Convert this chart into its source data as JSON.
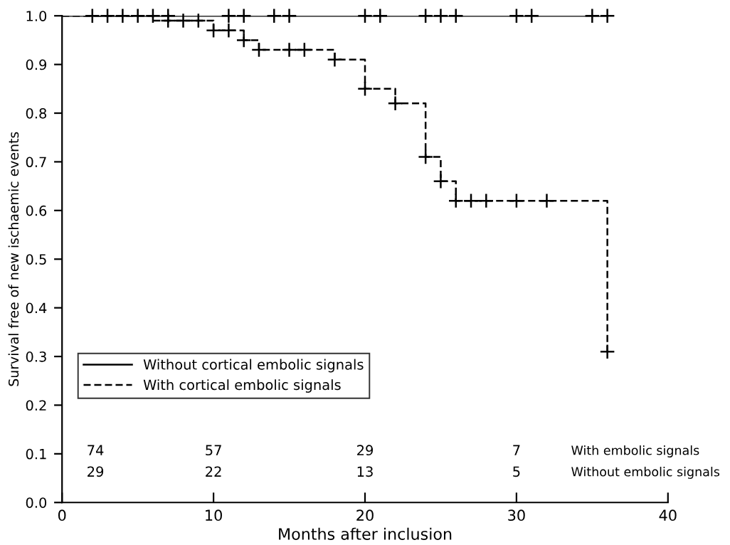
{
  "chart_data": {
    "type": "step",
    "xlabel": "Months after inclusion",
    "ylabel": "Survival free of new ischaemic events",
    "xlim": [
      0,
      40
    ],
    "xticks": [
      0,
      10,
      20,
      30,
      40
    ],
    "ylim": [
      0,
      1
    ],
    "yticks": [
      {
        "value": 0,
        "label": "0.0"
      },
      0.1,
      0.2,
      0.3,
      0.4,
      0.5,
      0.6,
      0.7,
      0.8,
      0.9,
      {
        "value": 1,
        "label": "1.0"
      }
    ],
    "grid": false,
    "legend": "lower left",
    "series": [
      {
        "name": "Without cortical embolic signals",
        "color": "#000000",
        "line_style": "solid",
        "x": [
          0,
          36
        ],
        "values": [
          1.0,
          1.0
        ]
      },
      {
        "name": "With cortical embolic signals",
        "color": "#000000",
        "line_style": "dashed",
        "x": [
          0,
          6,
          10,
          12,
          13,
          18,
          20,
          22,
          24,
          25,
          26,
          36
        ],
        "values": [
          1.0,
          0.99,
          0.97,
          0.95,
          0.93,
          0.91,
          0.85,
          0.82,
          0.71,
          0.66,
          0.62,
          0.31
        ]
      },
      {
        "type": "scatter",
        "marker": "cross",
        "color": "#000000",
        "x": [
          2,
          3,
          4,
          5,
          6,
          7,
          11,
          12,
          14,
          15,
          20,
          21,
          24,
          25,
          26,
          30,
          31,
          35,
          36
        ],
        "values": [
          1,
          1,
          1,
          1,
          1,
          1,
          1,
          1,
          1,
          1,
          1,
          1,
          1,
          1,
          1,
          1,
          1,
          1,
          1
        ]
      },
      {
        "type": "scatter",
        "marker": "cross",
        "color": "#000000",
        "x": [
          7,
          8,
          9,
          10,
          11,
          12,
          13,
          15,
          16,
          18,
          20,
          22,
          24,
          25,
          26,
          27,
          28,
          30,
          32,
          36
        ],
        "values": [
          0.99,
          0.99,
          0.99,
          0.97,
          0.97,
          0.95,
          0.93,
          0.93,
          0.93,
          0.91,
          0.85,
          0.82,
          0.71,
          0.66,
          0.62,
          0.62,
          0.62,
          0.62,
          0.62,
          0.31
        ]
      }
    ],
    "annotations": [
      "74",
      "57",
      "29",
      "7",
      "With embolic signals",
      "29",
      "22",
      "13",
      "5",
      "Without embolic signals"
    ]
  }
}
